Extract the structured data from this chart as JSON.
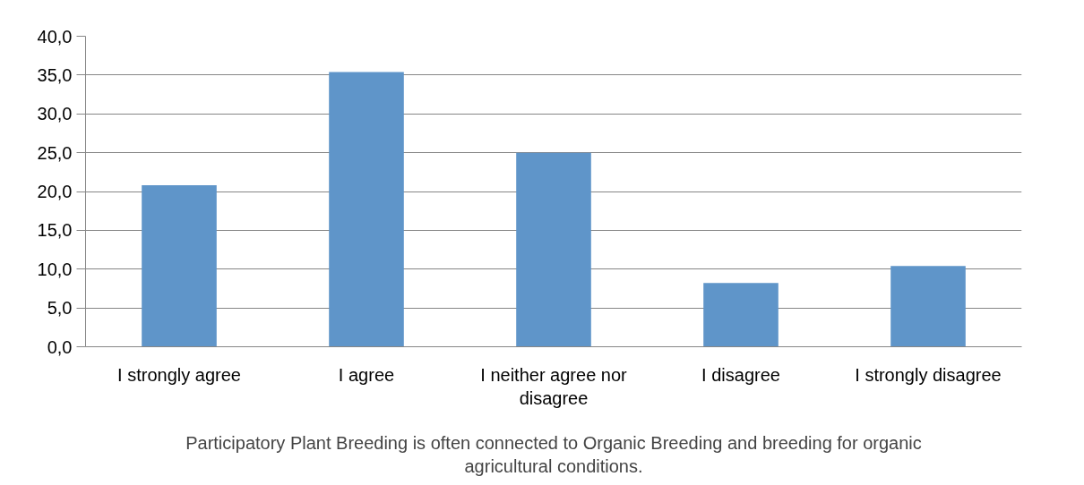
{
  "chart_data": {
    "type": "bar",
    "xlabel": "Participatory Plant Breeding is often connected to Organic Breeding and breeding for organic agricultural conditions.",
    "categories": [
      "I strongly agree",
      "I agree",
      "I neither agree nor disagree",
      "I disagree",
      "I strongly disagree"
    ],
    "values": [
      20.8,
      35.4,
      25.0,
      8.2,
      10.4
    ],
    "color": "#5f95c9",
    "ylim": [
      0,
      40
    ],
    "yticks": [
      {
        "value": 0,
        "label": "0,0"
      },
      {
        "value": 5,
        "label": "5,0"
      },
      {
        "value": 10,
        "label": "10,0"
      },
      {
        "value": 15,
        "label": "15,0"
      },
      {
        "value": 20,
        "label": "20,0"
      },
      {
        "value": 25,
        "label": "25,0"
      },
      {
        "value": 30,
        "label": "30,0"
      },
      {
        "value": 35,
        "label": "35,0"
      },
      {
        "value": 40,
        "label": "40,0"
      }
    ],
    "grid": "y"
  }
}
